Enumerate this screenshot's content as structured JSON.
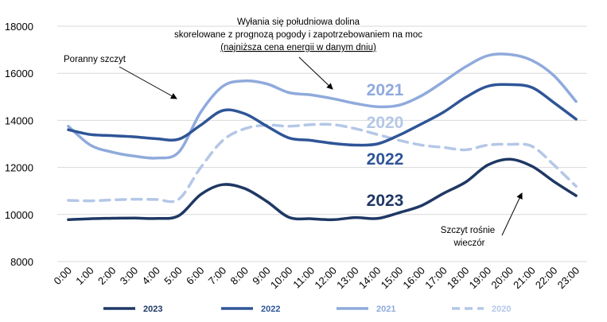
{
  "chart_data": {
    "type": "line",
    "categories": [
      "0:00",
      "1:00",
      "2:00",
      "3:00",
      "4:00",
      "5:00",
      "6:00",
      "7:00",
      "8:00",
      "9:00",
      "10:00",
      "11:00",
      "12:00",
      "13:00",
      "14:00",
      "15:00",
      "16:00",
      "17:00",
      "18:00",
      "19:00",
      "20:00",
      "21:00",
      "22:00",
      "23:00"
    ],
    "ylim": [
      8000,
      18000
    ],
    "yticks": [
      "8000",
      "10000",
      "12000",
      "14000",
      "16000",
      "18000"
    ],
    "grid": true,
    "legend_position": "bottom",
    "series": [
      {
        "name": "2023",
        "color": "#1f3864",
        "dashed": false,
        "values": [
          9780,
          9820,
          9840,
          9850,
          9830,
          9950,
          10850,
          11270,
          11100,
          10550,
          9880,
          9820,
          9780,
          9870,
          9830,
          10080,
          10380,
          10900,
          11380,
          12100,
          12350,
          12050,
          11400,
          10800
        ]
      },
      {
        "name": "2022",
        "color": "#2f5597",
        "dashed": false,
        "values": [
          13600,
          13400,
          13350,
          13300,
          13220,
          13200,
          13800,
          14420,
          14280,
          13750,
          13250,
          13150,
          13020,
          12950,
          13000,
          13380,
          13850,
          14350,
          14980,
          15450,
          15520,
          15400,
          14750,
          14050
        ]
      },
      {
        "name": "2021",
        "color": "#8faadc",
        "dashed": false,
        "values": [
          13750,
          12950,
          12650,
          12480,
          12400,
          12650,
          14350,
          15450,
          15680,
          15550,
          15180,
          15080,
          14920,
          14720,
          14580,
          14650,
          15050,
          15650,
          16280,
          16750,
          16800,
          16550,
          15900,
          14800
        ]
      },
      {
        "name": "2020",
        "color": "#b4c7e7",
        "dashed": true,
        "values": [
          10600,
          10580,
          10620,
          10650,
          10640,
          10650,
          12000,
          13150,
          13650,
          13800,
          13750,
          13820,
          13820,
          13650,
          13400,
          13150,
          12950,
          12850,
          12750,
          12950,
          12980,
          12900,
          12100,
          11200
        ]
      }
    ],
    "series_labels": [
      "2021",
      "2020",
      "2022",
      "2023"
    ],
    "annotations": {
      "morning_peak": "Poranny szczyt",
      "valley_line1": "Wyłania się południowa dolina",
      "valley_line2": "skorelowane z prognozą pogody i zapotrzebowaniem na moc",
      "valley_line3": "(najniższa cena energii w danym dniu)",
      "evening_line1": "Szczyt rośnie",
      "evening_line2": "wieczór"
    }
  }
}
